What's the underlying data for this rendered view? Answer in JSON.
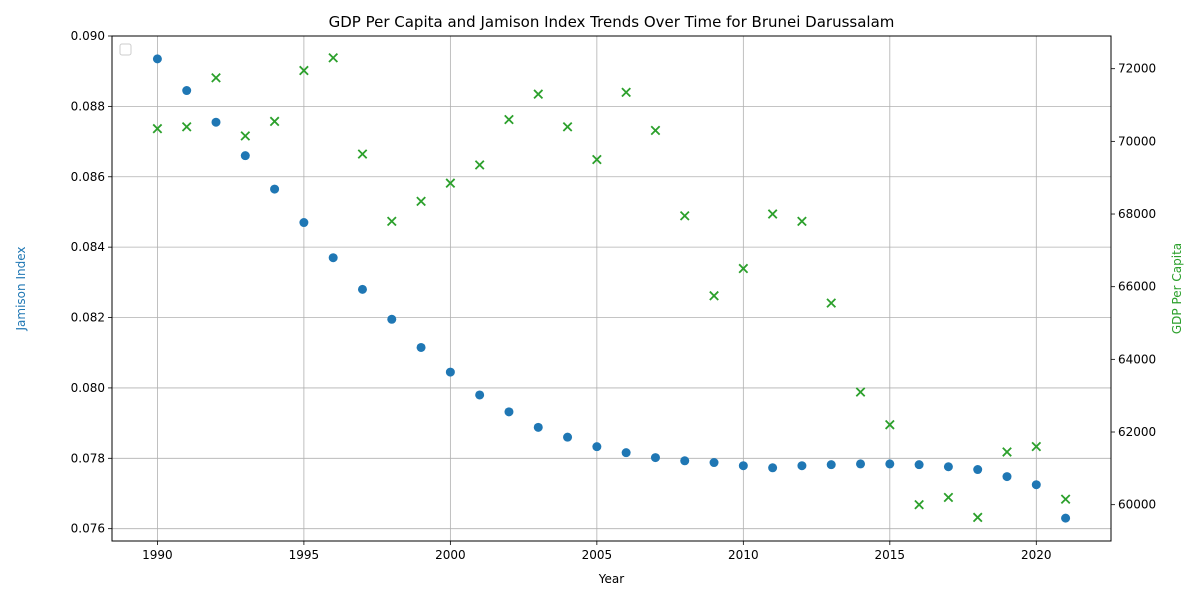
{
  "chart_data": {
    "type": "scatter",
    "title": "GDP Per Capita and Jamison Index Trends Over Time for Brunei Darussalam",
    "xlabel": "Year",
    "ylabel_left": "Jamison Index",
    "ylabel_right": "GDP Per Capita",
    "xlim": [
      1988.45,
      2022.55
    ],
    "ylim_left": [
      0.07565,
      0.09
    ],
    "ylim_right": [
      59000,
      72900
    ],
    "x_ticks": [
      1990,
      1995,
      2000,
      2005,
      2010,
      2015,
      2020
    ],
    "y_left_ticks": [
      0.076,
      0.078,
      0.08,
      0.082,
      0.084,
      0.086,
      0.088,
      0.09
    ],
    "y_left_tick_labels": [
      "0.076",
      "0.078",
      "0.080",
      "0.082",
      "0.084",
      "0.086",
      "0.088",
      "0.090"
    ],
    "y_right_ticks": [
      60000,
      62000,
      64000,
      66000,
      68000,
      70000,
      72000
    ],
    "y_right_tick_labels": [
      "60000",
      "62000",
      "64000",
      "66000",
      "68000",
      "70000",
      "72000"
    ],
    "grid": true,
    "legend": "top-left (empty)",
    "x": [
      1990,
      1991,
      1992,
      1993,
      1994,
      1995,
      1996,
      1997,
      1998,
      1999,
      2000,
      2001,
      2002,
      2003,
      2004,
      2005,
      2006,
      2007,
      2008,
      2009,
      2010,
      2011,
      2012,
      2013,
      2014,
      2015,
      2016,
      2017,
      2018,
      2019,
      2020,
      2021
    ],
    "series": [
      {
        "axis": "left",
        "marker": "circle",
        "color": "#1f77b4",
        "values": [
          0.08935,
          0.08845,
          0.08755,
          0.0866,
          0.08565,
          0.0847,
          0.0837,
          0.0828,
          0.08195,
          0.08115,
          0.08045,
          0.0798,
          0.07932,
          0.07888,
          0.0786,
          0.07833,
          0.07816,
          0.07802,
          0.07793,
          0.07788,
          0.07779,
          0.07773,
          0.07779,
          0.07782,
          0.07784,
          0.07784,
          0.07782,
          0.07776,
          0.07768,
          0.07748,
          0.07725,
          0.0763
        ]
      },
      {
        "axis": "right",
        "marker": "x",
        "color": "#2ca02c",
        "values": [
          70350,
          70400,
          71750,
          70150,
          70550,
          71950,
          72300,
          69650,
          67800,
          68350,
          68850,
          69350,
          70600,
          71300,
          70400,
          69500,
          71350,
          70300,
          67950,
          65750,
          66500,
          68000,
          67800,
          65550,
          63100,
          62200,
          60000,
          60200,
          59650,
          61450,
          61600,
          60150
        ]
      }
    ]
  }
}
